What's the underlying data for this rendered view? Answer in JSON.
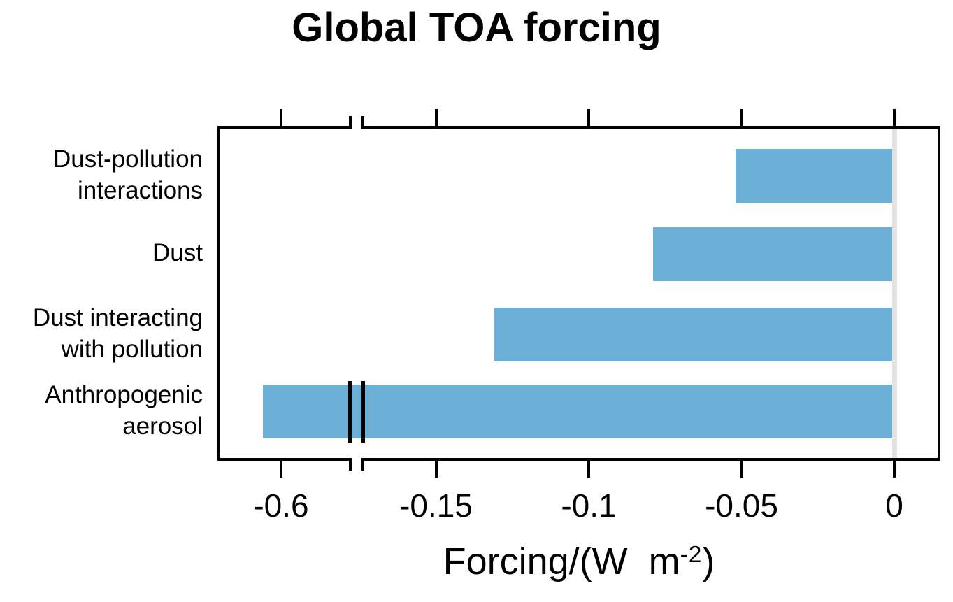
{
  "title": "Global TOA forcing",
  "x_axis": {
    "label_prefix": "Forcing/(W  m",
    "label_sup": "-2",
    "label_suffix": ")",
    "ticks": [
      {
        "value": -0.6,
        "label": "-0.6"
      },
      {
        "value": -0.15,
        "label": "-0.15"
      },
      {
        "value": -0.1,
        "label": "-0.1"
      },
      {
        "value": -0.05,
        "label": "-0.05"
      },
      {
        "value": 0,
        "label": "0"
      }
    ],
    "has_break": true,
    "break_between_labels": [
      "-0.6",
      "-0.15"
    ]
  },
  "chart_data": {
    "type": "bar",
    "orientation": "horizontal",
    "title": "Global TOA forcing",
    "xlabel": "Forcing/(W m-2)",
    "ylabel": "",
    "categories": [
      "Dust-pollution interactions",
      "Dust",
      "Dust interacting with pollution",
      "Anthropogenic aerosol"
    ],
    "category_lines": [
      [
        "Dust-pollution",
        "interactions"
      ],
      [
        "Dust"
      ],
      [
        "Dust interacting",
        "with pollution"
      ],
      [
        "Anthropogenic",
        "aerosol"
      ]
    ],
    "values": [
      -0.052,
      -0.079,
      -0.131,
      -0.606
    ],
    "units": "W m-2",
    "axis_break": true,
    "right_segment_range": [
      -0.174,
      0
    ],
    "left_segment_anchor_tick": -0.6,
    "grid": false,
    "legend": false
  },
  "colors": {
    "bar": "#6BAED6",
    "zero_line": "#E2E2E2",
    "axis": "#000000",
    "background": "#FFFFFF"
  }
}
